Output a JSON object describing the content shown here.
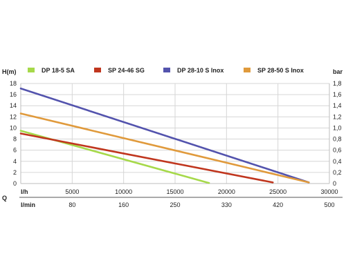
{
  "chart_data": {
    "type": "line",
    "left_axis_unit": "H(m)",
    "right_axis_unit": "bar",
    "left_ticks": [
      "0",
      "2",
      "4",
      "6",
      "8",
      "10",
      "12",
      "14",
      "16",
      "18"
    ],
    "right_ticks": [
      "0",
      "0,2",
      "0,4",
      "0,6",
      "0,8",
      "1,0",
      "1,2",
      "1,4",
      "1,6",
      "1,8"
    ],
    "ylim": [
      0,
      18
    ],
    "xlim": [
      0,
      30000
    ],
    "x_unit_lh": "l/h",
    "x_ticks_lh": [
      "5000",
      "10000",
      "15000",
      "20000",
      "25000",
      "30000"
    ],
    "x_unit_lmin": "l/min",
    "x_ticks_lmin": [
      "80",
      "160",
      "250",
      "330",
      "420",
      "500"
    ],
    "q_label": "Q",
    "grid": true,
    "legend_position": "top",
    "series": [
      {
        "name": "DP 18-5 SA",
        "color": "#a6d94a",
        "x": [
          0,
          18300
        ],
        "y": [
          9.5,
          0.1
        ]
      },
      {
        "name": "SP 24-46 SG",
        "color": "#c0361e",
        "x": [
          0,
          24500
        ],
        "y": [
          9.0,
          0.2
        ]
      },
      {
        "name": "DP 28-10 S Inox",
        "color": "#5353ad",
        "x": [
          0,
          28000
        ],
        "y": [
          17.1,
          0.2
        ]
      },
      {
        "name": "SP 28-50 S Inox",
        "color": "#e09a3c",
        "x": [
          0,
          28000
        ],
        "y": [
          12.6,
          0.2
        ]
      }
    ]
  }
}
